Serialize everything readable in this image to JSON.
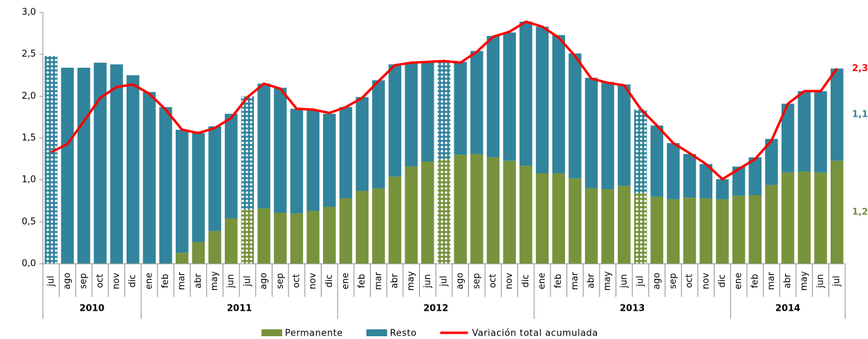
{
  "chart_data": {
    "type": "stacked_bar_line",
    "categories": [
      "jul",
      "ago",
      "sep",
      "oct",
      "nov",
      "dic",
      "ene",
      "feb",
      "mar",
      "abr",
      "may",
      "jun",
      "jul",
      "ago",
      "sep",
      "oct",
      "nov",
      "dic",
      "ene",
      "feb",
      "mar",
      "abr",
      "may",
      "jun",
      "jul",
      "ago",
      "sep",
      "oct",
      "nov",
      "dic",
      "ene",
      "feb",
      "mar",
      "abr",
      "may",
      "jun",
      "jul",
      "ago",
      "sep",
      "oct",
      "nov",
      "dic",
      "ene",
      "feb",
      "mar",
      "abr",
      "may",
      "jun",
      "jul"
    ],
    "groups": [
      {
        "label": "2010",
        "start": 0,
        "end": 5
      },
      {
        "label": "2011",
        "start": 6,
        "end": 17
      },
      {
        "label": "2012",
        "start": 18,
        "end": 29
      },
      {
        "label": "2013",
        "start": 30,
        "end": 41
      },
      {
        "label": "2014",
        "start": 42,
        "end": 48
      }
    ],
    "hatched": [
      0,
      12,
      24,
      36
    ],
    "series": [
      {
        "name": "Permanente",
        "color": "#77933c",
        "kind": "bar",
        "values": [
          0,
          0,
          0,
          0,
          0,
          0,
          0,
          0,
          0.13,
          0.26,
          0.39,
          0.54,
          0.65,
          0.66,
          0.61,
          0.6,
          0.63,
          0.68,
          0.78,
          0.87,
          0.9,
          1.04,
          1.16,
          1.22,
          1.25,
          1.3,
          1.31,
          1.27,
          1.23,
          1.17,
          1.08,
          1.08,
          1.02,
          0.9,
          0.89,
          0.93,
          0.84,
          0.8,
          0.77,
          0.79,
          0.78,
          0.77,
          0.81,
          0.82,
          0.94,
          1.09,
          1.1,
          1.09,
          1.23
        ]
      },
      {
        "name": "Resto",
        "color": "#31849b",
        "kind": "bar",
        "values": [
          2.48,
          2.34,
          2.34,
          2.4,
          2.38,
          2.25,
          2.05,
          1.87,
          1.47,
          1.3,
          1.25,
          1.25,
          1.35,
          1.49,
          1.49,
          1.25,
          1.2,
          1.11,
          1.09,
          1.12,
          1.29,
          1.34,
          1.24,
          1.19,
          1.16,
          1.11,
          1.23,
          1.45,
          1.53,
          1.72,
          1.75,
          1.65,
          1.49,
          1.32,
          1.28,
          1.21,
          1.0,
          0.85,
          0.67,
          0.52,
          0.41,
          0.24,
          0.35,
          0.45,
          0.55,
          0.82,
          0.96,
          0.97,
          1.1
        ]
      },
      {
        "name": "Variación total acumulada",
        "color": "#ff0000",
        "kind": "line",
        "values": [
          1.33,
          1.43,
          1.7,
          1.98,
          2.11,
          2.14,
          2.03,
          1.84,
          1.6,
          1.56,
          1.62,
          1.74,
          1.99,
          2.15,
          2.09,
          1.85,
          1.84,
          1.8,
          1.87,
          1.98,
          2.18,
          2.37,
          2.4,
          2.41,
          2.42,
          2.4,
          2.53,
          2.71,
          2.77,
          2.89,
          2.83,
          2.7,
          2.48,
          2.21,
          2.16,
          2.13,
          1.85,
          1.65,
          1.44,
          1.32,
          1.19,
          1.01,
          1.13,
          1.25,
          1.47,
          1.91,
          2.06,
          2.06,
          2.33
        ]
      }
    ],
    "annotations": [
      {
        "text": "2,3",
        "series": 2
      },
      {
        "text": "1,1",
        "series": 1
      },
      {
        "text": "1,2",
        "series": 0
      }
    ],
    "ylim": [
      0,
      3
    ],
    "yticks": [
      {
        "value": 0,
        "label": "0,0"
      },
      {
        "value": 0.5,
        "label": "0,5"
      },
      {
        "value": 1,
        "label": "1,0"
      },
      {
        "value": 1.5,
        "label": "1,5"
      },
      {
        "value": 2,
        "label": "2,0"
      },
      {
        "value": 2.5,
        "label": "2,5"
      },
      {
        "value": 3,
        "label": "3,0"
      }
    ],
    "legend": "bottom"
  }
}
